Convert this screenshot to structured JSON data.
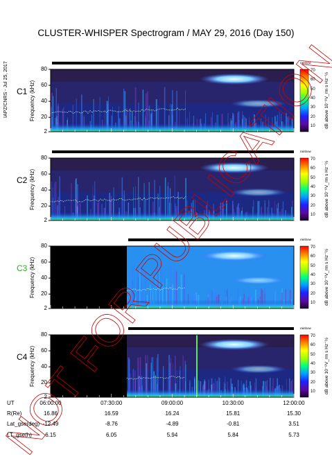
{
  "title": "CLUSTER-WHISPER Spectrogram / MAY 29, 2016 (Day 150)",
  "side_stamp": "IAPZ/CNRS - Jul 25, 2017",
  "watermark": "NOT FOR PUBLICATION",
  "colors": {
    "panel_bg": "#2a1e4e",
    "accent_c3": "#22b522",
    "rfi_line": "#cc0000",
    "bar": "#000000"
  },
  "panels": [
    {
      "name": "C1",
      "name_color": "#000000",
      "ylabel": "Frequency (kHz)",
      "yticks": [
        "80",
        "60",
        "40",
        "20",
        "2"
      ]
    },
    {
      "name": "C2",
      "name_color": "#000000",
      "ylabel": "Frequency (kHz)",
      "yticks": [
        "80",
        "60",
        "40",
        "20",
        "2"
      ]
    },
    {
      "name": "C3",
      "name_color": "#22b522",
      "ylabel": "Frequency (kHz)",
      "yticks": [
        "80",
        "60",
        "40",
        "20",
        "2"
      ]
    },
    {
      "name": "C4",
      "name_color": "#000000",
      "ylabel": "Frequency (kHz)",
      "yticks": [
        "80",
        "60",
        "40",
        "20",
        "2"
      ]
    }
  ],
  "colorbar": {
    "label": "dB above 10⁻⁸V_rm s Hz⁻½",
    "ticks": [
      "70",
      "60",
      "50",
      "40",
      "30",
      "20",
      "10"
    ],
    "top_text": "rainbow"
  },
  "ephemeris": {
    "rows": [
      {
        "label": "UT",
        "values": [
          "06:00:00",
          "07:30:00",
          "09:00:00",
          "10:30:00",
          "12:00:00"
        ]
      },
      {
        "label": "R(Re)",
        "values": [
          "16.86",
          "16.59",
          "16.24",
          "15.81",
          "15.30"
        ]
      },
      {
        "label": "Lat_gse(deg)",
        "values": [
          "-12.49",
          "-8.76",
          "-4.89",
          "-0.81",
          "3.51"
        ]
      },
      {
        "label": "LT_gse(h)",
        "values": [
          "6.15",
          "6.05",
          "5.94",
          "5.84",
          "5.73"
        ]
      }
    ]
  },
  "chart_data": [
    {
      "type": "heatmap",
      "title": "C1",
      "xlabel": "",
      "ylabel": "Frequency (kHz)",
      "ylim": [
        2,
        80
      ],
      "x_ticks": [
        "06:00:00",
        "07:30:00",
        "09:00:00",
        "10:30:00",
        "12:00:00"
      ],
      "y_ticks": [
        80,
        60,
        40,
        20,
        2
      ],
      "colorbar_ticks": [
        70,
        60,
        50,
        40,
        30,
        20,
        10
      ],
      "colorbar_range": [
        5,
        72
      ]
    },
    {
      "type": "heatmap",
      "title": "C2",
      "xlabel": "",
      "ylabel": "Frequency (kHz)",
      "ylim": [
        2,
        80
      ],
      "x_ticks": [
        "06:00:00",
        "07:30:00",
        "09:00:00",
        "10:30:00",
        "12:00:00"
      ],
      "y_ticks": [
        80,
        60,
        40,
        20,
        2
      ],
      "colorbar_ticks": [
        70,
        60,
        50,
        40,
        30,
        20,
        10
      ],
      "colorbar_range": [
        5,
        72
      ]
    },
    {
      "type": "heatmap",
      "title": "C3",
      "xlabel": "",
      "ylabel": "Frequency (kHz)",
      "ylim": [
        2,
        80
      ],
      "x_ticks": [
        "06:00:00",
        "07:30:00",
        "09:00:00",
        "10:30:00",
        "12:00:00"
      ],
      "y_ticks": [
        80,
        60,
        40,
        20,
        2
      ],
      "colorbar_ticks": [
        70,
        60,
        50,
        40,
        30,
        20,
        10
      ],
      "colorbar_range": [
        5,
        72
      ]
    },
    {
      "type": "heatmap",
      "title": "C4",
      "xlabel": "",
      "ylabel": "Frequency (kHz)",
      "ylim": [
        2,
        80
      ],
      "x_ticks": [
        "06:00:00",
        "07:30:00",
        "09:00:00",
        "10:30:00",
        "12:00:00"
      ],
      "y_ticks": [
        80,
        60,
        40,
        20,
        2
      ],
      "colorbar_ticks": [
        70,
        60,
        50,
        40,
        30,
        20,
        10
      ],
      "colorbar_range": [
        5,
        72
      ]
    }
  ]
}
